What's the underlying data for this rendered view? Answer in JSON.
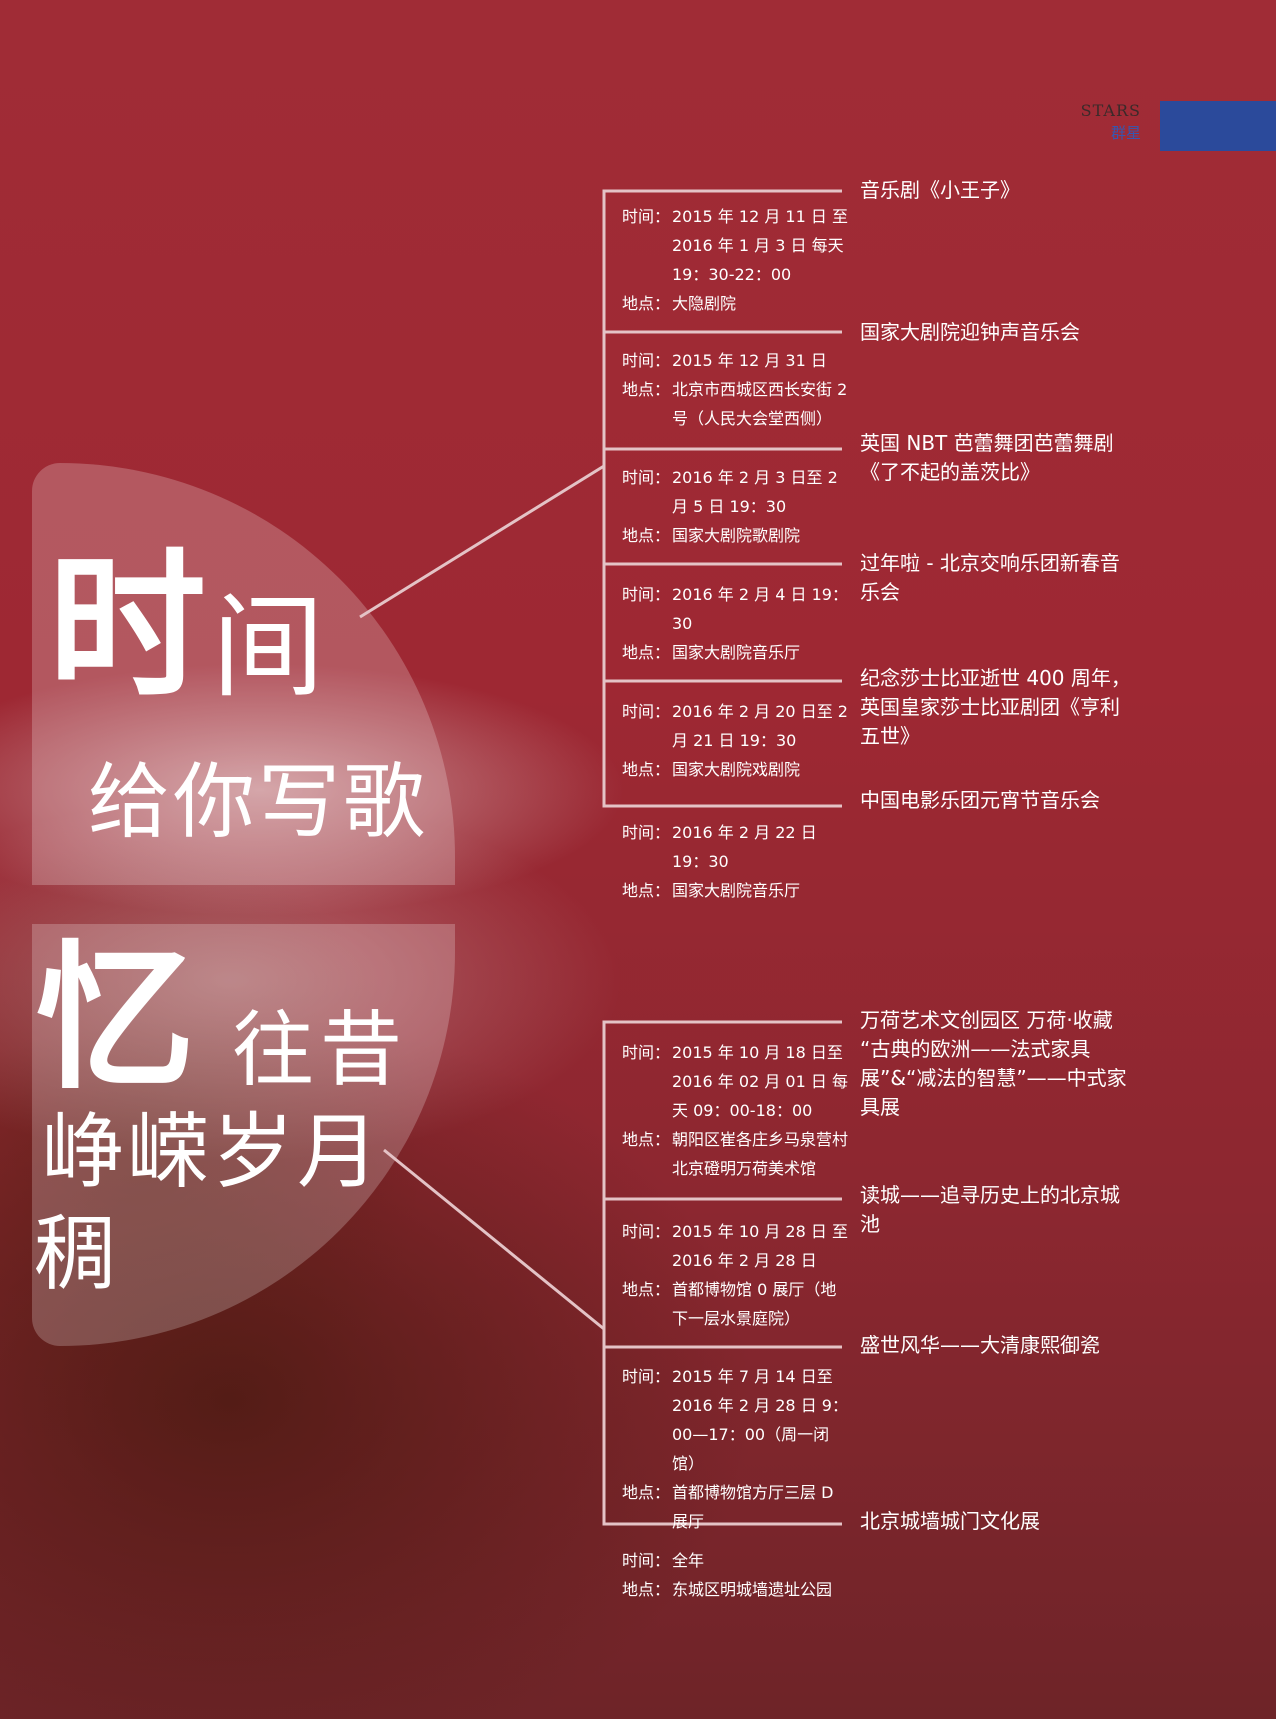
{
  "header": {
    "en": "STARS",
    "cn": "群星"
  },
  "colors": {
    "background": "#9a2530",
    "accent_bar": "#2b4a9b",
    "line": "#e4c3c6"
  },
  "hero": {
    "top": {
      "char_big": "时",
      "char_med": "间",
      "line2": "给你写歌"
    },
    "bottom": {
      "char_big": "忆",
      "char_med": "往昔",
      "line2": "峥嵘岁月",
      "line3": "稠"
    }
  },
  "labels": {
    "time": "时间：",
    "place": "地点："
  },
  "events": [
    {
      "title": "音乐剧《小王子》",
      "time": "2015 年 12 月 11 日 至 2016 年 1 月 3 日 每天 19：30-22：00",
      "place": "大隐剧院"
    },
    {
      "title": "国家大剧院迎钟声音乐会",
      "time": "2015 年 12 月 31 日",
      "place": "北京市西城区西长安街 2 号（人民大会堂西侧）"
    },
    {
      "title": "英国 NBT 芭蕾舞团芭蕾舞剧《了不起的盖茨比》",
      "time": "2016 年 2 月 3 日至 2 月 5 日 19：30",
      "place": "国家大剧院歌剧院"
    },
    {
      "title": "过年啦 - 北京交响乐团新春音乐会",
      "time": "2016 年 2 月 4 日 19：30",
      "place": "国家大剧院音乐厅"
    },
    {
      "title": "纪念莎士比亚逝世 400 周年，英国皇家莎士比亚剧团《亨利五世》",
      "time": "2016 年 2 月 20 日至 2 月 21 日 19：30",
      "place": "国家大剧院戏剧院"
    },
    {
      "title": "中国电影乐团元宵节音乐会",
      "time": "2016 年 2 月 22 日 19：30",
      "place": "国家大剧院音乐厅"
    },
    {
      "title": "万荷艺术文创园区 万荷·收藏 “古典的欧洲——法式家具展”&“减法的智慧”——中式家具展",
      "time": "2015 年 10 月 18 日至 2016 年 02 月 01 日 每天 09：00-18：00",
      "place": "朝阳区崔各庄乡马泉营村北京磴明万荷美术馆"
    },
    {
      "title": "读城——追寻历史上的北京城池",
      "time": "2015 年 10 月 28 日 至 2016 年 2 月 28 日",
      "place": "首都博物馆 0 展厅（地下一层水景庭院）"
    },
    {
      "title": "盛世风华——大清康熙御瓷",
      "time": "2015 年 7 月 14 日至 2016 年 2 月 28 日 9：00—17：00（周一闭馆）",
      "place": "首都博物馆方厅三层 D 展厅"
    },
    {
      "title": "北京城墙城门文化展",
      "time": "全年",
      "place": "东城区明城墙遗址公园"
    }
  ]
}
